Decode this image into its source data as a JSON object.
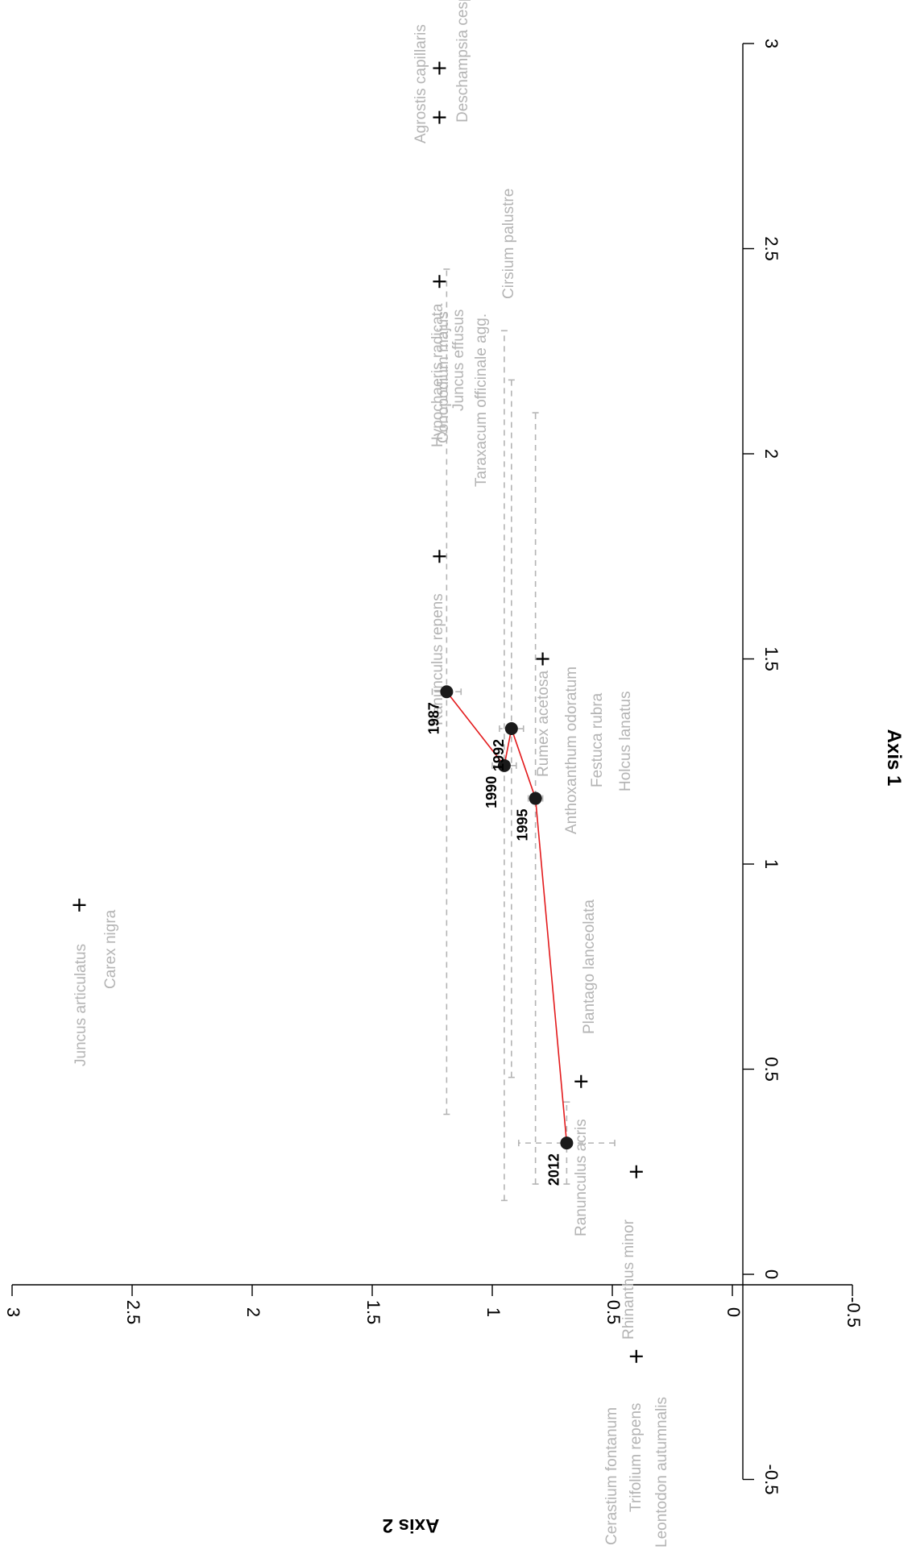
{
  "chart_data": {
    "type": "scatter",
    "title": "",
    "xlabel": "Axis 1",
    "ylabel": "Axis 2",
    "xlim": [
      -0.5,
      3
    ],
    "ylim": [
      -0.5,
      3
    ],
    "x_ticks": [
      "-0.5",
      "0",
      "0.5",
      "1",
      "1.5",
      "2",
      "2.5",
      "3"
    ],
    "y_ticks": [
      "-0.5",
      "0",
      "0.5",
      "1",
      "1.5",
      "2",
      "2.5",
      "3"
    ],
    "grid": false,
    "colors": {
      "trajectory": "#e31a1c",
      "site_points": "#1a1a1a",
      "species_labels": "#b4b4b4",
      "error_bars": "#b4b4b4",
      "species_markers": "#000000"
    },
    "species": [
      {
        "name": "Agrostis capillaris",
        "x": 2.94,
        "y": 1.22
      },
      {
        "name": "Conopodium majus",
        "x": 2.82,
        "y": 1.22
      },
      {
        "name": "Deschampsia cespitosa",
        "x": 2.82,
        "y": 1.22
      },
      {
        "name": "Hypochaeris radicata",
        "x": 2.42,
        "y": 1.22
      },
      {
        "name": "Juncus effusus",
        "x": 2.42,
        "y": 1.22
      },
      {
        "name": "Taraxacum officinale agg.",
        "x": 2.42,
        "y": 1.22
      },
      {
        "name": "Cirsium palustre",
        "x": 2.42,
        "y": 1.22
      },
      {
        "name": "Ranunculus repens",
        "x": 1.75,
        "y": 1.22
      },
      {
        "name": "Rumex acetosa",
        "x": 1.5,
        "y": 0.79
      },
      {
        "name": "Anthoxanthum odoratum",
        "x": 1.5,
        "y": 0.79
      },
      {
        "name": "Festuca rubra",
        "x": 1.5,
        "y": 0.79
      },
      {
        "name": "Holcus lanatus",
        "x": 1.5,
        "y": 0.79
      },
      {
        "name": "Juncus articulatus",
        "x": 0.9,
        "y": 2.72
      },
      {
        "name": "Carex nigra",
        "x": 0.9,
        "y": 2.72
      },
      {
        "name": "Plantago lanceolata",
        "x": 0.47,
        "y": 0.63
      },
      {
        "name": "Ranunculus acris",
        "x": 0.47,
        "y": 0.63
      },
      {
        "name": "Rhinanthus minor",
        "x": 0.25,
        "y": 0.4
      },
      {
        "name": "Cerastium fontanum",
        "x": -0.2,
        "y": 0.4
      },
      {
        "name": "Trifolium repens",
        "x": -0.2,
        "y": 0.4
      },
      {
        "name": "Leontodon autumnalis",
        "x": -0.2,
        "y": 0.4
      }
    ],
    "years": [
      {
        "label": "1987",
        "x": 1.42,
        "y": 1.19
      },
      {
        "label": "1990",
        "x": 1.24,
        "y": 0.95
      },
      {
        "label": "1992",
        "x": 1.33,
        "y": 0.92
      },
      {
        "label": "1995",
        "x": 1.16,
        "y": 0.82
      },
      {
        "label": "2012",
        "x": 0.32,
        "y": 0.69
      }
    ]
  }
}
